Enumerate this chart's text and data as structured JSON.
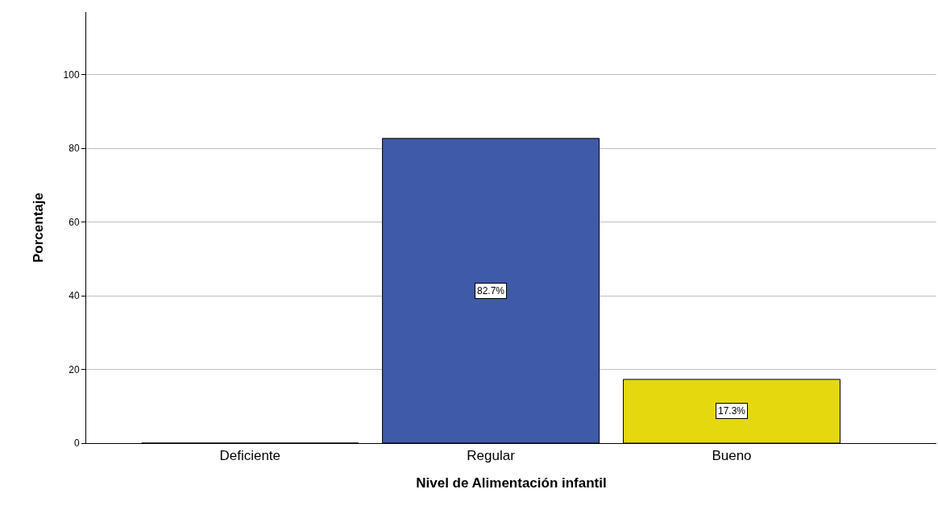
{
  "chart_data": {
    "type": "bar",
    "categories": [
      "Deficiente",
      "Regular",
      "Bueno"
    ],
    "values": [
      0,
      82.7,
      17.3
    ],
    "colors": [
      "#3f5aa8",
      "#3f5aa8",
      "#e4d80e"
    ],
    "value_labels": [
      null,
      "82.7%",
      "17.3%"
    ],
    "xlabel": "Nivel de Alimentación infantil",
    "ylabel": "Porcentaje",
    "ylim": [
      0,
      117
    ],
    "yticks": [
      0,
      20,
      40,
      60,
      80,
      100
    ],
    "grid": "y"
  }
}
